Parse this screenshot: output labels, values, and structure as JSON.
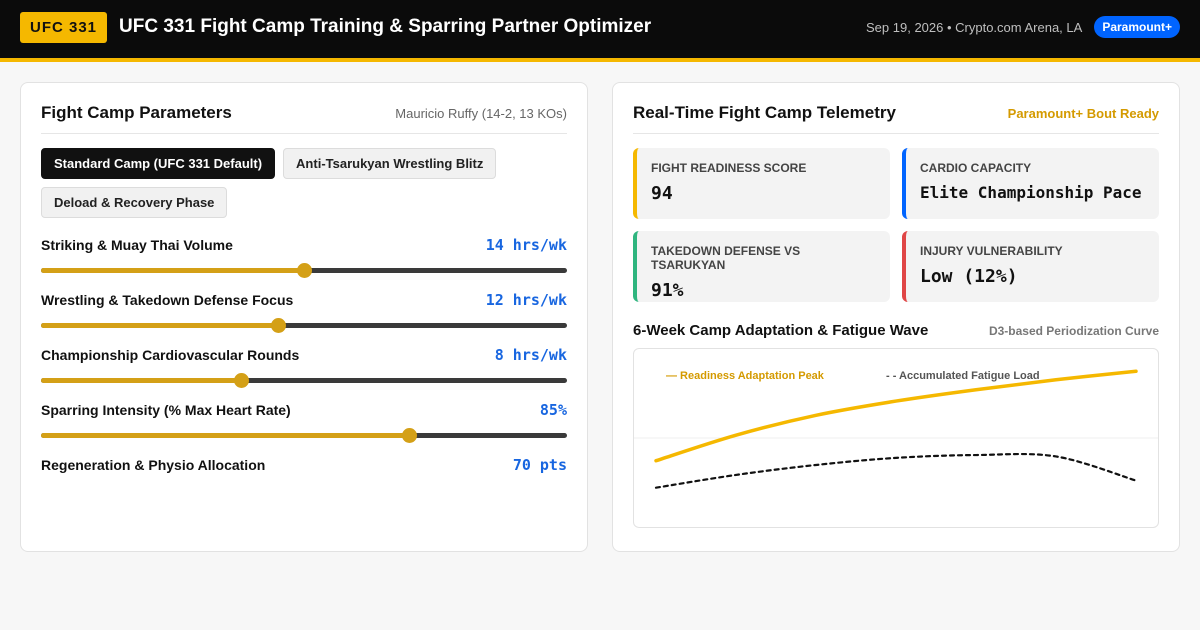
{
  "header": {
    "brand": "UFC 331",
    "title": "UFC 331 Fight Camp Training & Sparring Partner Optimizer",
    "event_info": "Sep 19, 2026 • Crypto.com Arena, LA",
    "network_badge": "Paramount+"
  },
  "params": {
    "title": "Fight Camp Parameters",
    "fighter": "Mauricio Ruffy (14-2, 13 KOs)",
    "presets": [
      {
        "label": "Standard Camp (UFC 331 Default)",
        "active": true
      },
      {
        "label": "Anti-Tsarukyan Wrestling Blitz",
        "active": false
      },
      {
        "label": "Deload & Recovery Phase",
        "active": false
      }
    ],
    "sliders": [
      {
        "label": "Striking & Muay Thai Volume",
        "value": "14 hrs/wk",
        "fraction": 0.5
      },
      {
        "label": "Wrestling & Takedown Defense Focus",
        "value": "12 hrs/wk",
        "fraction": 0.45
      },
      {
        "label": "Championship Cardiovascular Rounds",
        "value": "8 hrs/wk",
        "fraction": 0.38
      },
      {
        "label": "Sparring Intensity (% Max Heart Rate)",
        "value": "85%",
        "fraction": 0.7
      },
      {
        "label": "Regeneration & Physio Allocation",
        "value": "70 pts"
      }
    ]
  },
  "telemetry": {
    "title": "Real-Time Fight Camp Telemetry",
    "status": "Paramount+ Bout Ready",
    "metrics": [
      {
        "label": "Fight Readiness Score",
        "value": "94",
        "accent": "#f5b800"
      },
      {
        "label": "Cardio Capacity",
        "value": "Elite Championship Pace",
        "accent": "#0064ff"
      },
      {
        "label": "Takedown Defense vs Tsarukyan",
        "value": "91%",
        "accent": "#2fb57f"
      },
      {
        "label": "Injury Vulnerability",
        "value": "Low (12%)",
        "accent": "#e04646"
      }
    ]
  },
  "chart": {
    "title": "6-Week Camp Adaptation & Fatigue Wave",
    "subtitle": "D3-based Periodization Curve"
  },
  "chart_data": {
    "type": "line",
    "x": [
      0,
      1,
      2,
      3,
      4,
      5,
      6
    ],
    "series": [
      {
        "name": "— Readiness Adaptation Peak",
        "values": [
          0.34,
          0.52,
          0.66,
          0.76,
          0.84,
          0.91,
          0.97
        ],
        "color": "#f5b800",
        "style": "solid"
      },
      {
        "name": "- - Accumulated Fatigue Load",
        "values": [
          0.15,
          0.24,
          0.31,
          0.36,
          0.38,
          0.37,
          0.2
        ],
        "color": "#111111",
        "style": "dashed"
      }
    ],
    "ylim": [
      0,
      1
    ],
    "grid": "single horizontal midline",
    "legend": "top-left"
  }
}
